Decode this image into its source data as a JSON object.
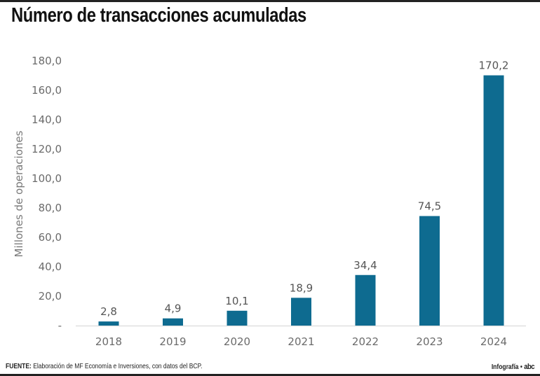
{
  "header": {
    "title": "Número de transacciones acumuladas"
  },
  "footer": {
    "source_label": "FUENTE:",
    "source_text": " Elaboración de MF Economía e Inversiones, con datos del BCP.",
    "credit_label": "Infografía •",
    "logo_text": "abc"
  },
  "colors": {
    "bar": "#0e6b90",
    "axis": "#e0e0e0",
    "text": "#6b6b6b"
  },
  "chart_data": {
    "type": "bar",
    "title": "Número de transacciones acumuladas",
    "xlabel": "",
    "ylabel": "Millones de operaciones",
    "categories": [
      "2018",
      "2019",
      "2020",
      "2021",
      "2022",
      "2023",
      "2024"
    ],
    "values": [
      2.8,
      4.9,
      10.1,
      18.9,
      34.4,
      74.5,
      170.2
    ],
    "value_labels": [
      "2,8",
      "4,9",
      "10,1",
      "18,9",
      "34,4",
      "74,5",
      "170,2"
    ],
    "ylim": [
      0,
      180
    ],
    "yticks": [
      0,
      20,
      40,
      60,
      80,
      100,
      120,
      140,
      160,
      180
    ],
    "ytick_labels": [
      "-",
      "20,0",
      "40,0",
      "60,0",
      "80,0",
      "100,0",
      "120,0",
      "140,0",
      "160,0",
      "180,0"
    ],
    "grid": false,
    "legend": "none"
  }
}
